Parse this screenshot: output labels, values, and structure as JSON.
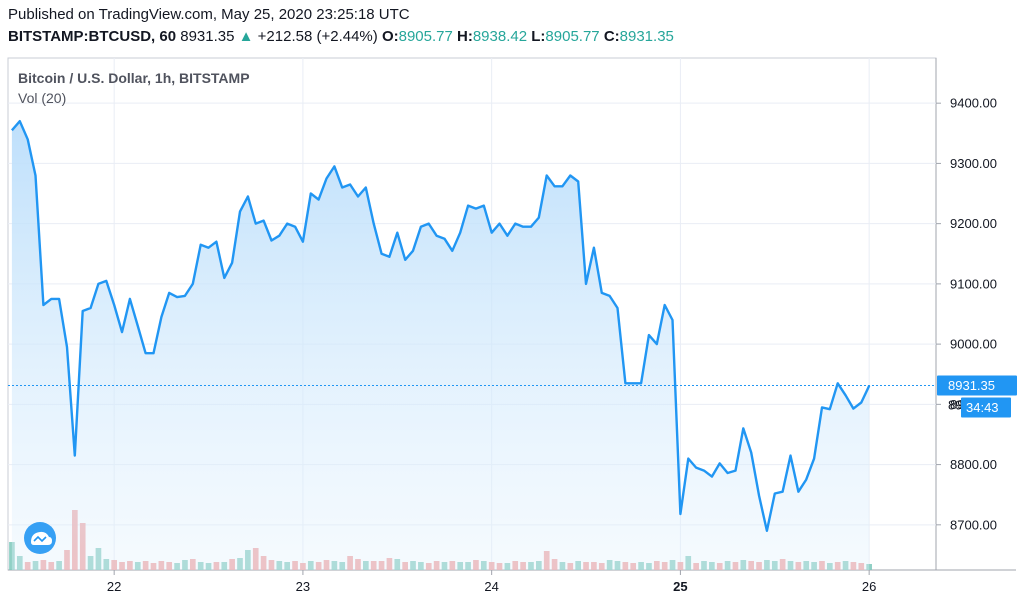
{
  "header": {
    "published": "Published on TradingView.com, May 25, 2020 23:25:18 UTC",
    "symbol": "BITSTAMP:BTCUSD, 60",
    "last": "8931.35",
    "arrow": "▲",
    "change": "+212.58 (+2.44%)",
    "o_label": "O:",
    "o_value": "8905.77",
    "h_label": "H:",
    "h_value": "8938.42",
    "l_label": "L:",
    "l_value": "8905.77",
    "c_label": "C:",
    "c_value": "8931.35"
  },
  "legend": {
    "title": "Bitcoin / U.S. Dollar, 1h, BITSTAMP",
    "volume": "Vol (20)"
  },
  "colors": {
    "line": "#2196f3",
    "fill_top": "#bbdefb",
    "grid": "#e9edf5",
    "vol_up": "#7dc8bb",
    "vol_down": "#ef9a9a",
    "badge": "#2196f3"
  },
  "chart_data": {
    "type": "area",
    "title": "Bitcoin / U.S. Dollar, 1h, BITSTAMP",
    "ylim": [
      8625,
      9475
    ],
    "y_ticks": [
      "9400.00",
      "9300.00",
      "9200.00",
      "9100.00",
      "9000.00",
      "8900.00",
      "8800.00",
      "8700.00"
    ],
    "x_ticks": [
      {
        "label": "22",
        "index": 13,
        "bold": false
      },
      {
        "label": "23",
        "index": 37,
        "bold": false
      },
      {
        "label": "24",
        "index": 61,
        "bold": false
      },
      {
        "label": "25",
        "index": 85,
        "bold": true
      },
      {
        "label": "26",
        "index": 109,
        "bold": false
      }
    ],
    "n_slots": 118,
    "price": [
      9355,
      9370,
      9340,
      9280,
      9065,
      9075,
      9075,
      8995,
      8815,
      9055,
      9060,
      9100,
      9105,
      9065,
      9020,
      9075,
      9030,
      8985,
      8985,
      9045,
      9085,
      9078,
      9080,
      9100,
      9165,
      9160,
      9170,
      9110,
      9135,
      9220,
      9245,
      9200,
      9205,
      9172,
      9180,
      9200,
      9195,
      9170,
      9250,
      9240,
      9275,
      9295,
      9260,
      9265,
      9245,
      9260,
      9200,
      9150,
      9145,
      9185,
      9140,
      9155,
      9195,
      9200,
      9180,
      9175,
      9155,
      9185,
      9230,
      9225,
      9230,
      9185,
      9200,
      9180,
      9200,
      9195,
      9195,
      9210,
      9280,
      9262,
      9262,
      9280,
      9270,
      9100,
      9160,
      9085,
      9080,
      9060,
      8935,
      8935,
      8935,
      9015,
      9000,
      9065,
      9040,
      8718,
      8810,
      8795,
      8790,
      8780,
      8802,
      8786,
      8790,
      8860,
      8820,
      8748,
      8690,
      8752,
      8755,
      8815,
      8755,
      8775,
      8810,
      8895,
      8892,
      8935,
      8915,
      8893,
      8903,
      8931
    ],
    "volume": [
      28,
      14,
      8,
      9,
      10,
      8,
      9,
      20,
      60,
      47,
      14,
      22,
      11,
      10,
      8,
      9,
      8,
      9,
      7,
      9,
      8,
      7,
      10,
      11,
      8,
      7,
      8,
      8,
      11,
      12,
      20,
      22,
      14,
      10,
      9,
      8,
      9,
      7,
      9,
      8,
      10,
      9,
      8,
      14,
      11,
      9,
      9,
      9,
      12,
      11,
      8,
      9,
      8,
      7,
      9,
      8,
      9,
      8,
      8,
      10,
      9,
      8,
      7,
      7,
      9,
      8,
      8,
      9,
      19,
      11,
      8,
      7,
      9,
      8,
      8,
      7,
      10,
      9,
      8,
      7,
      8,
      7,
      9,
      8,
      10,
      8,
      14,
      7,
      9,
      8,
      7,
      9,
      8,
      10,
      9,
      8,
      10,
      9,
      11,
      9,
      8,
      9,
      8,
      9,
      7,
      8,
      9,
      8,
      7,
      6
    ],
    "volume_direction": [
      "u",
      "u",
      "d",
      "u",
      "d",
      "d",
      "u",
      "d",
      "d",
      "d",
      "u",
      "u",
      "u",
      "d",
      "d",
      "d",
      "u",
      "d",
      "d",
      "d",
      "d",
      "u",
      "u",
      "d",
      "u",
      "u",
      "d",
      "u",
      "d",
      "u",
      "u",
      "d",
      "d",
      "d",
      "u",
      "u",
      "d",
      "d",
      "u",
      "d",
      "d",
      "u",
      "u",
      "d",
      "d",
      "u",
      "d",
      "d",
      "d",
      "u",
      "d",
      "u",
      "u",
      "d",
      "d",
      "u",
      "d",
      "u",
      "u",
      "d",
      "u",
      "d",
      "d",
      "u",
      "d",
      "d",
      "u",
      "u",
      "d",
      "d",
      "u",
      "d",
      "u",
      "d",
      "d",
      "d",
      "u",
      "u",
      "d",
      "d",
      "u",
      "u",
      "d",
      "d",
      "u",
      "d",
      "u",
      "d",
      "u",
      "u",
      "d",
      "u",
      "d",
      "u",
      "d",
      "d",
      "u",
      "u",
      "d",
      "u",
      "d",
      "u",
      "u",
      "d",
      "u",
      "d",
      "u",
      "d",
      "d",
      "u"
    ],
    "volume_max": 130,
    "last_price_label": "8931.35",
    "countdown_label": "34:43",
    "partial_label": "89"
  }
}
